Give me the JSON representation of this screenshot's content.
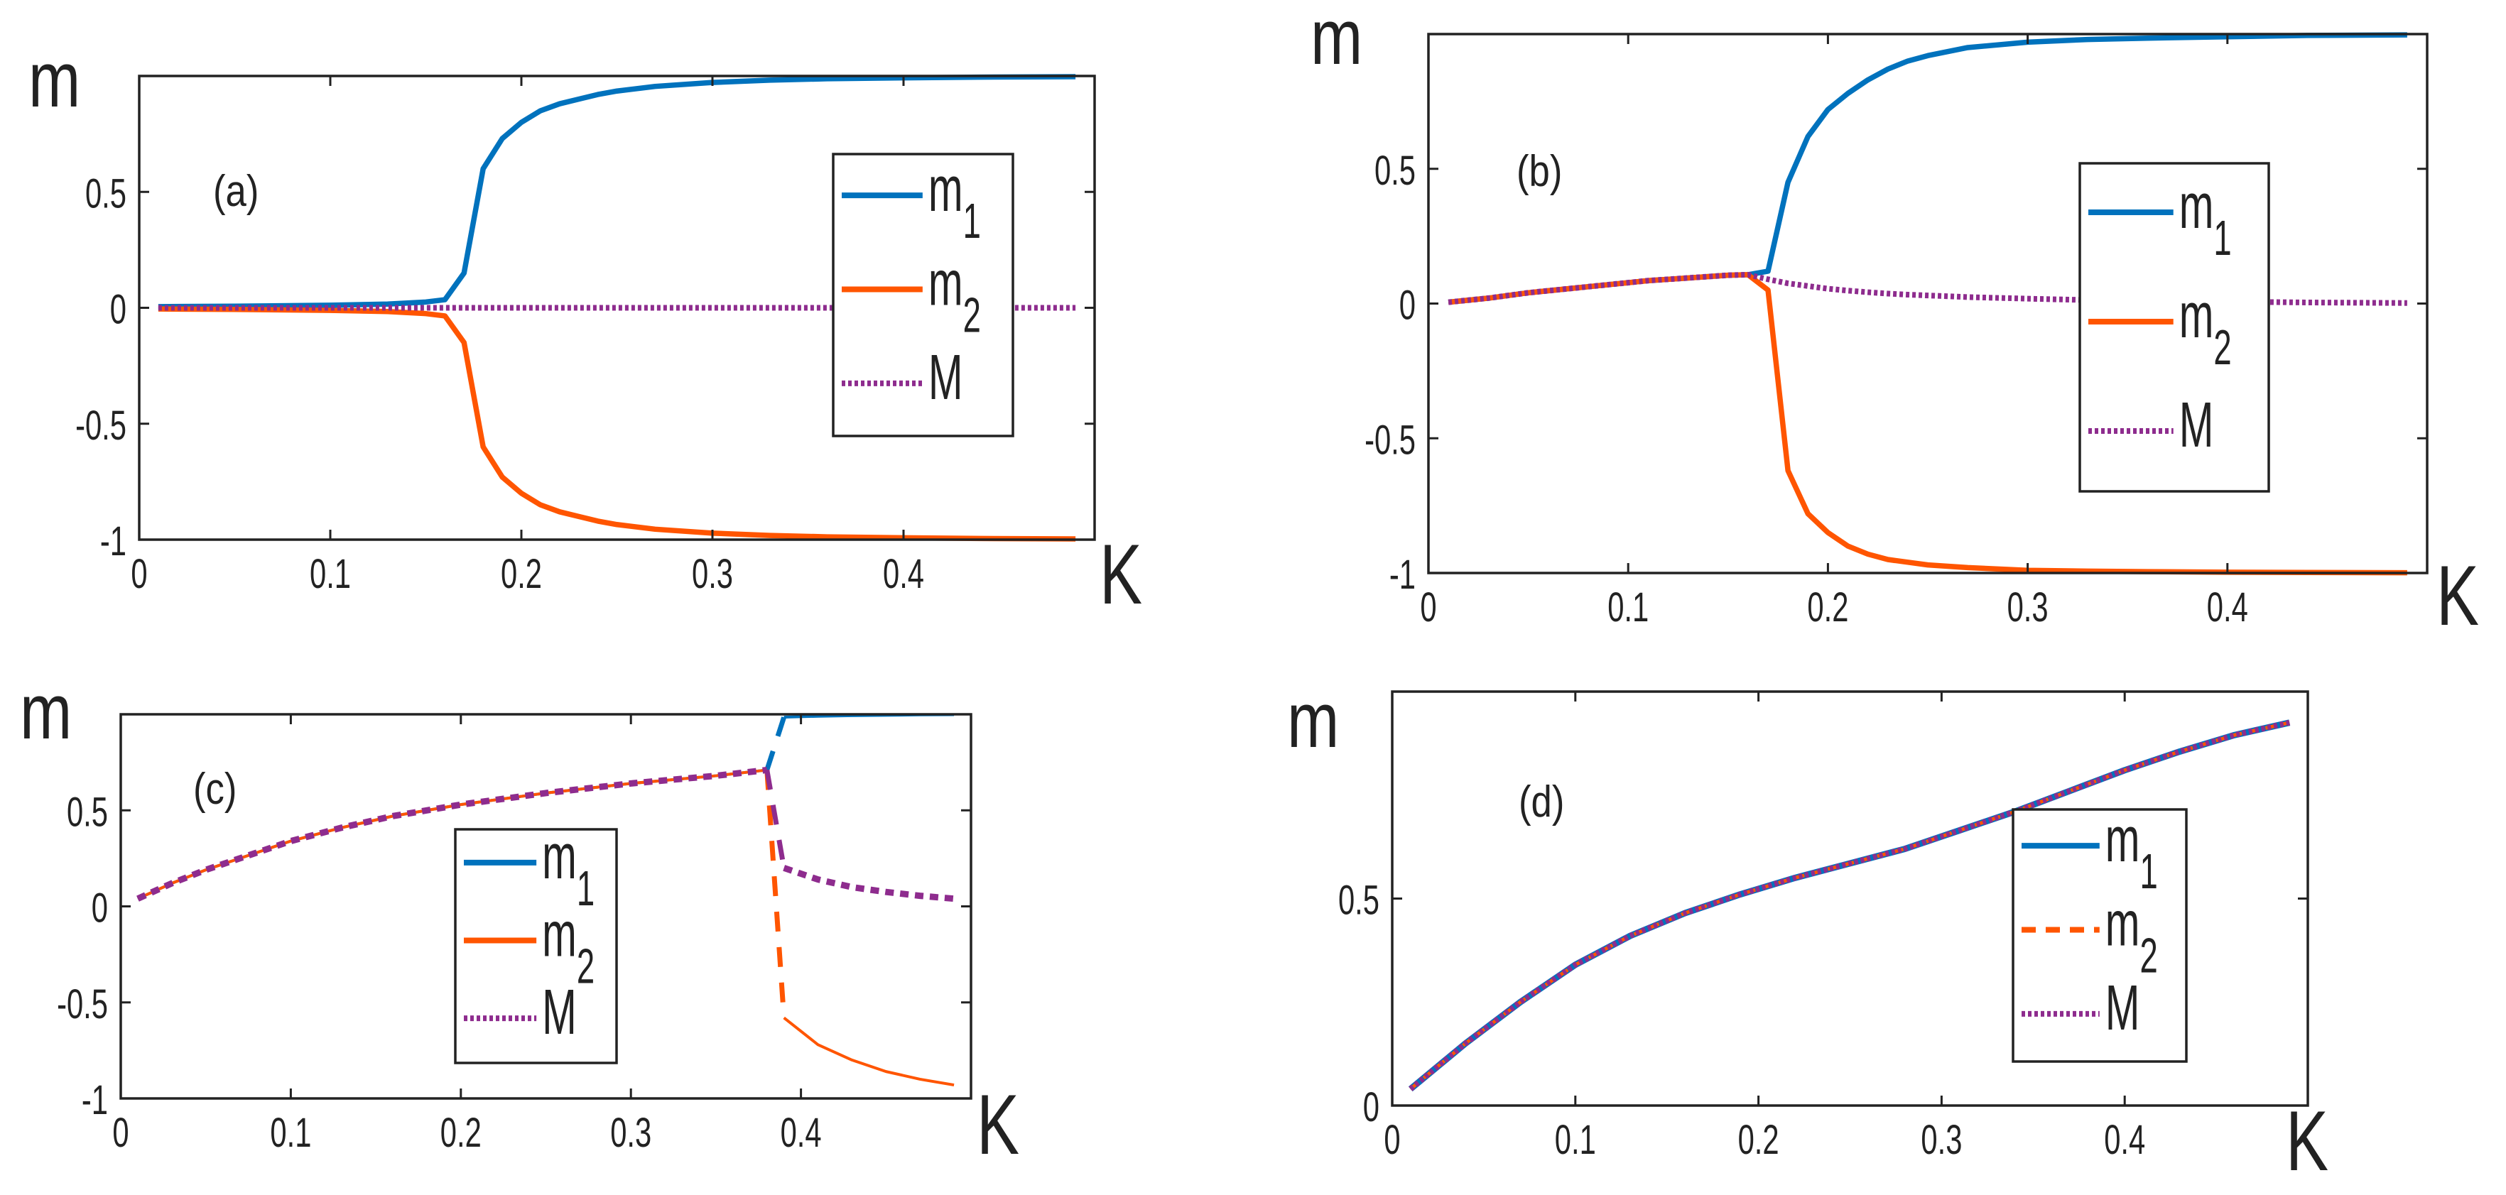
{
  "chart_data": [
    {
      "type": "line",
      "panel_label": "(a)",
      "xlabel": "K",
      "ylabel": "m",
      "xlim": [
        0,
        0.5
      ],
      "ylim": [
        -1,
        1
      ],
      "xticks": [
        "0",
        "0.1",
        "0.2",
        "0.3",
        "0.4"
      ],
      "xtick_values": [
        0,
        0.1,
        0.2,
        0.3,
        0.4
      ],
      "yticks": [
        "-1",
        "-0.5",
        "0",
        "0.5"
      ],
      "ytick_values": [
        -1,
        -0.5,
        0,
        0.5
      ],
      "legend_placement": "right",
      "x": [
        0.01,
        0.05,
        0.1,
        0.13,
        0.15,
        0.16,
        0.17,
        0.18,
        0.19,
        0.2,
        0.21,
        0.22,
        0.23,
        0.24,
        0.25,
        0.27,
        0.3,
        0.33,
        0.36,
        0.4,
        0.44,
        0.49
      ],
      "series": [
        {
          "name": "m1",
          "color": "#0072BD",
          "style": "solid",
          "values": [
            0.005,
            0.007,
            0.011,
            0.016,
            0.025,
            0.035,
            0.15,
            0.6,
            0.73,
            0.8,
            0.85,
            0.88,
            0.9,
            0.92,
            0.935,
            0.955,
            0.972,
            0.982,
            0.988,
            0.992,
            0.995,
            0.997
          ]
        },
        {
          "name": "m2",
          "color": "#FF5500",
          "style": "solid",
          "values": [
            -0.005,
            -0.007,
            -0.011,
            -0.016,
            -0.025,
            -0.035,
            -0.15,
            -0.6,
            -0.73,
            -0.8,
            -0.85,
            -0.88,
            -0.9,
            -0.92,
            -0.935,
            -0.955,
            -0.972,
            -0.982,
            -0.988,
            -0.992,
            -0.995,
            -0.997
          ]
        },
        {
          "name": "M",
          "color": "#8E2C8E",
          "style": "dotted",
          "values": [
            0,
            0,
            0,
            0,
            0,
            0,
            0,
            0,
            0,
            0,
            0,
            0,
            0,
            0,
            0,
            0,
            0,
            0,
            0,
            0,
            0,
            0
          ]
        }
      ]
    },
    {
      "type": "line",
      "panel_label": "(b)",
      "xlabel": "K",
      "ylabel": "m",
      "xlim": [
        0,
        0.5
      ],
      "ylim": [
        -1,
        1
      ],
      "xticks": [
        "0",
        "0.1",
        "0.2",
        "0.3",
        "0.4"
      ],
      "xtick_values": [
        0,
        0.1,
        0.2,
        0.3,
        0.4
      ],
      "yticks": [
        "-1",
        "-0.5",
        "0",
        "0.5"
      ],
      "ytick_values": [
        -1,
        -0.5,
        0,
        0.5
      ],
      "legend_placement": "right",
      "x": [
        0.01,
        0.03,
        0.05,
        0.07,
        0.09,
        0.11,
        0.13,
        0.15,
        0.16,
        0.17,
        0.18,
        0.19,
        0.2,
        0.21,
        0.22,
        0.23,
        0.24,
        0.25,
        0.27,
        0.3,
        0.33,
        0.36,
        0.4,
        0.44,
        0.49
      ],
      "series": [
        {
          "name": "m1",
          "color": "#0072BD",
          "style": "solid",
          "values": [
            0.005,
            0.02,
            0.04,
            0.055,
            0.07,
            0.085,
            0.095,
            0.105,
            0.107,
            0.12,
            0.45,
            0.62,
            0.72,
            0.78,
            0.83,
            0.87,
            0.9,
            0.92,
            0.95,
            0.97,
            0.98,
            0.985,
            0.99,
            0.995,
            0.997
          ]
        },
        {
          "name": "m2",
          "color": "#FF5500",
          "style": "solid",
          "values": [
            0.005,
            0.02,
            0.04,
            0.055,
            0.07,
            0.085,
            0.095,
            0.105,
            0.107,
            0.05,
            -0.62,
            -0.78,
            -0.85,
            -0.9,
            -0.93,
            -0.95,
            -0.96,
            -0.97,
            -0.98,
            -0.99,
            -0.993,
            -0.995,
            -0.997,
            -0.998,
            -0.999
          ]
        },
        {
          "name": "M",
          "color": "#8E2C8E",
          "style": "dotted",
          "values": [
            0.005,
            0.02,
            0.04,
            0.055,
            0.07,
            0.085,
            0.095,
            0.105,
            0.107,
            0.09,
            0.075,
            0.065,
            0.055,
            0.048,
            0.042,
            0.037,
            0.033,
            0.03,
            0.024,
            0.018,
            0.013,
            0.01,
            0.007,
            0.004,
            0.002
          ]
        }
      ]
    },
    {
      "type": "line",
      "panel_label": "(c)",
      "xlabel": "K",
      "ylabel": "m",
      "xlim": [
        0,
        0.5
      ],
      "ylim": [
        -1,
        1
      ],
      "xticks": [
        "0",
        "0.1",
        "0.2",
        "0.3",
        "0.4"
      ],
      "xtick_values": [
        0,
        0.1,
        0.2,
        0.3,
        0.4
      ],
      "yticks": [
        "-1",
        "-0.5",
        "0",
        "0.5"
      ],
      "ytick_values": [
        -1,
        -0.5,
        0,
        0.5
      ],
      "legend_placement": "center",
      "x": [
        0.01,
        0.03,
        0.05,
        0.07,
        0.1,
        0.13,
        0.16,
        0.2,
        0.25,
        0.3,
        0.35,
        0.38,
        0.39,
        0.41,
        0.43,
        0.45,
        0.47,
        0.49
      ],
      "series": [
        {
          "name": "m1",
          "color": "#0072BD",
          "style": "solid",
          "values": [
            0.04,
            0.12,
            0.19,
            0.25,
            0.34,
            0.41,
            0.47,
            0.53,
            0.59,
            0.64,
            0.68,
            0.71,
            0.985,
            0.99,
            0.993,
            0.995,
            0.997,
            0.998
          ]
        },
        {
          "name": "m2",
          "color": "#FF5500",
          "style": "solid",
          "values": [
            0.04,
            0.12,
            0.19,
            0.25,
            0.34,
            0.41,
            0.47,
            0.53,
            0.59,
            0.64,
            0.68,
            0.71,
            -0.58,
            -0.72,
            -0.8,
            -0.86,
            -0.9,
            -0.93
          ]
        },
        {
          "name": "M",
          "color": "#8E2C8E",
          "style": "dotted",
          "values": [
            0.04,
            0.12,
            0.19,
            0.25,
            0.34,
            0.41,
            0.47,
            0.53,
            0.59,
            0.64,
            0.68,
            0.71,
            0.2,
            0.14,
            0.1,
            0.075,
            0.055,
            0.04
          ]
        }
      ]
    },
    {
      "type": "line",
      "panel_label": "(d)",
      "xlabel": "K",
      "ylabel": "m",
      "xlim": [
        0,
        0.5
      ],
      "ylim": [
        0,
        1
      ],
      "xticks": [
        "0",
        "0.1",
        "0.2",
        "0.3",
        "0.4"
      ],
      "xtick_values": [
        0,
        0.1,
        0.2,
        0.3,
        0.4
      ],
      "yticks": [
        "0",
        "0.5"
      ],
      "ytick_values": [
        0,
        0.5
      ],
      "legend_placement": "right",
      "x": [
        0.01,
        0.04,
        0.07,
        0.1,
        0.13,
        0.16,
        0.19,
        0.22,
        0.25,
        0.28,
        0.31,
        0.34,
        0.37,
        0.4,
        0.43,
        0.46,
        0.49
      ],
      "series": [
        {
          "name": "m1",
          "color": "#0072BD",
          "style": "solid",
          "values": [
            0.04,
            0.15,
            0.25,
            0.34,
            0.41,
            0.465,
            0.51,
            0.55,
            0.585,
            0.62,
            0.665,
            0.71,
            0.76,
            0.81,
            0.855,
            0.895,
            0.925
          ]
        },
        {
          "name": "m2",
          "color": "#FF5500",
          "style": "dashed",
          "values": [
            0.04,
            0.15,
            0.25,
            0.34,
            0.41,
            0.465,
            0.51,
            0.55,
            0.585,
            0.62,
            0.665,
            0.71,
            0.76,
            0.81,
            0.855,
            0.895,
            0.925
          ]
        },
        {
          "name": "M",
          "color": "#8E2C8E",
          "style": "dotted",
          "values": [
            0.04,
            0.15,
            0.25,
            0.34,
            0.41,
            0.465,
            0.51,
            0.55,
            0.585,
            0.62,
            0.665,
            0.71,
            0.76,
            0.81,
            0.855,
            0.895,
            0.925
          ]
        }
      ]
    }
  ]
}
